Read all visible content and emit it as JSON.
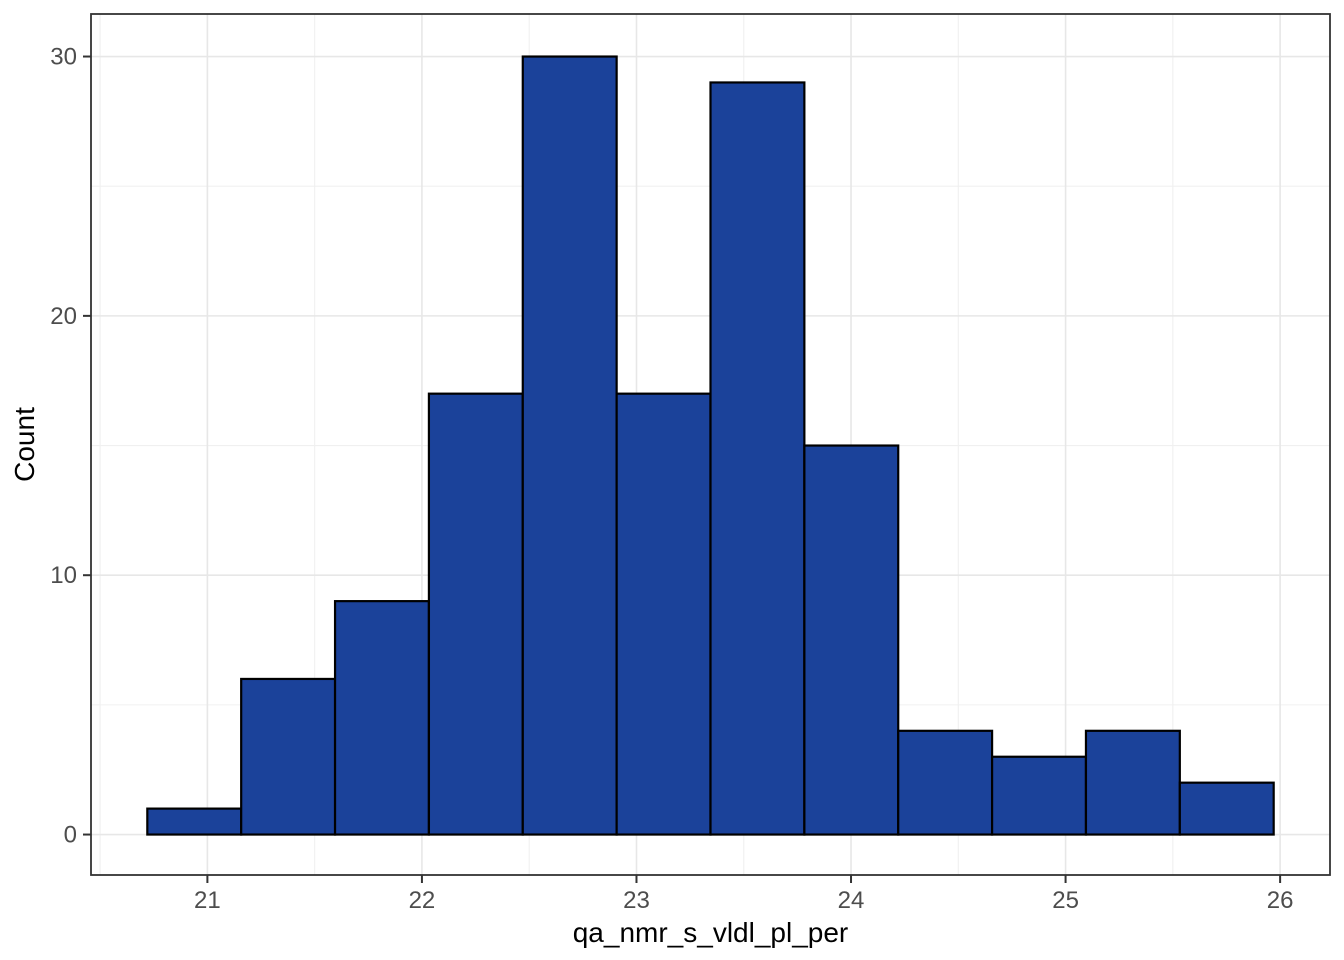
{
  "chart_data": {
    "type": "bar",
    "subtype": "histogram",
    "title": "",
    "xlabel": "qa_nmr_s_vldl_pl_per",
    "ylabel": "Count",
    "bin_start": 20.72,
    "binwidth": 0.4375,
    "counts": [
      1,
      6,
      9,
      17,
      30,
      17,
      29,
      15,
      4,
      3,
      4,
      2
    ],
    "bin_edges": [
      20.72,
      21.158,
      21.595,
      22.033,
      22.47,
      22.908,
      23.345,
      23.783,
      24.22,
      24.658,
      25.095,
      25.533,
      25.97
    ],
    "x_ticks": [
      21,
      22,
      23,
      24,
      25,
      26
    ],
    "y_ticks": [
      0,
      10,
      20,
      30
    ],
    "x_minor_gridlines": [
      20.5,
      21.5,
      22.5,
      23.5,
      24.5,
      25.5
    ],
    "y_minor_gridlines": [
      5,
      15,
      25
    ],
    "xlim": [
      20.4575,
      26.2325
    ],
    "ylim": [
      -1.56,
      31.64
    ],
    "grid_on": true,
    "legend": "none",
    "colors": {
      "bar_fill": "#1b429a",
      "bar_stroke": "#000000",
      "panel_background": "#ffffff",
      "panel_border": "#333333",
      "grid_major": "#e7e7e7",
      "grid_minor": "#f0f0f0",
      "tick_mark": "#333333",
      "tick_label": "#4d4d4d",
      "axis_title": "#000000"
    }
  }
}
